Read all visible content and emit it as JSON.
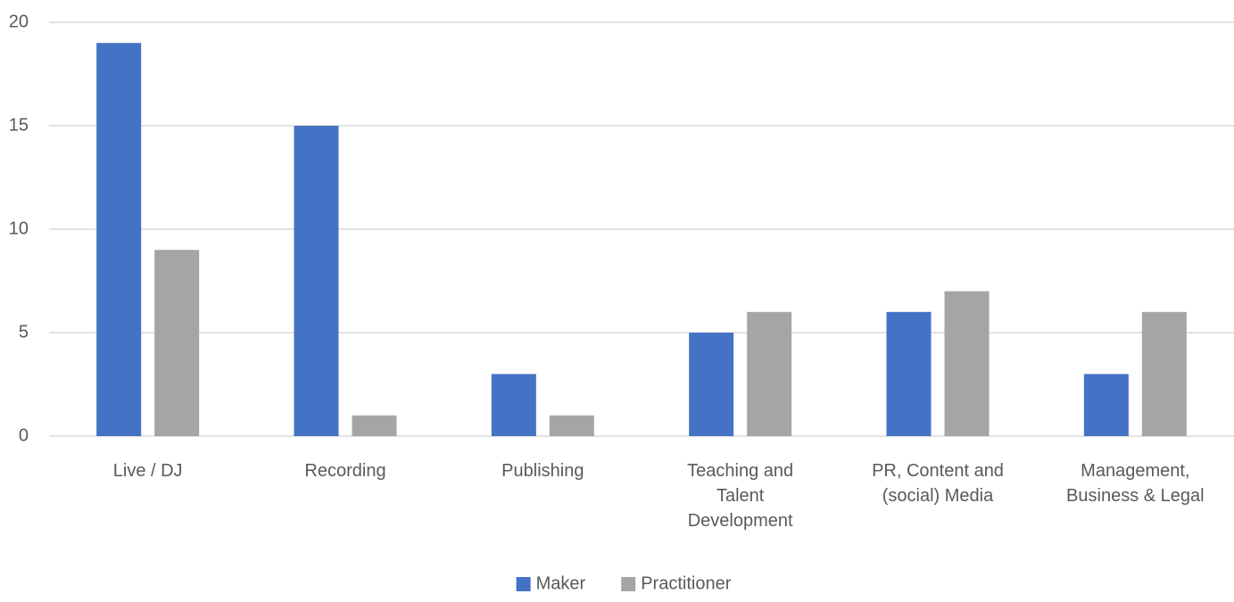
{
  "chart_data": {
    "type": "bar",
    "categories": [
      "Live / DJ",
      "Recording",
      "Publishing",
      "Teaching and\nTalent\nDevelopment",
      "PR, Content and\n(social) Media",
      "Management,\nBusiness & Legal"
    ],
    "series": [
      {
        "name": "Maker",
        "color": "#4472c4",
        "values": [
          19,
          15,
          3,
          5,
          6,
          3
        ]
      },
      {
        "name": "Practitioner",
        "color": "#a5a5a5",
        "values": [
          9,
          1,
          1,
          6,
          7,
          6
        ]
      }
    ],
    "ylim": [
      0,
      20
    ],
    "yticks": [
      0,
      5,
      10,
      15,
      20
    ],
    "grid": true,
    "legend": "bottom"
  }
}
